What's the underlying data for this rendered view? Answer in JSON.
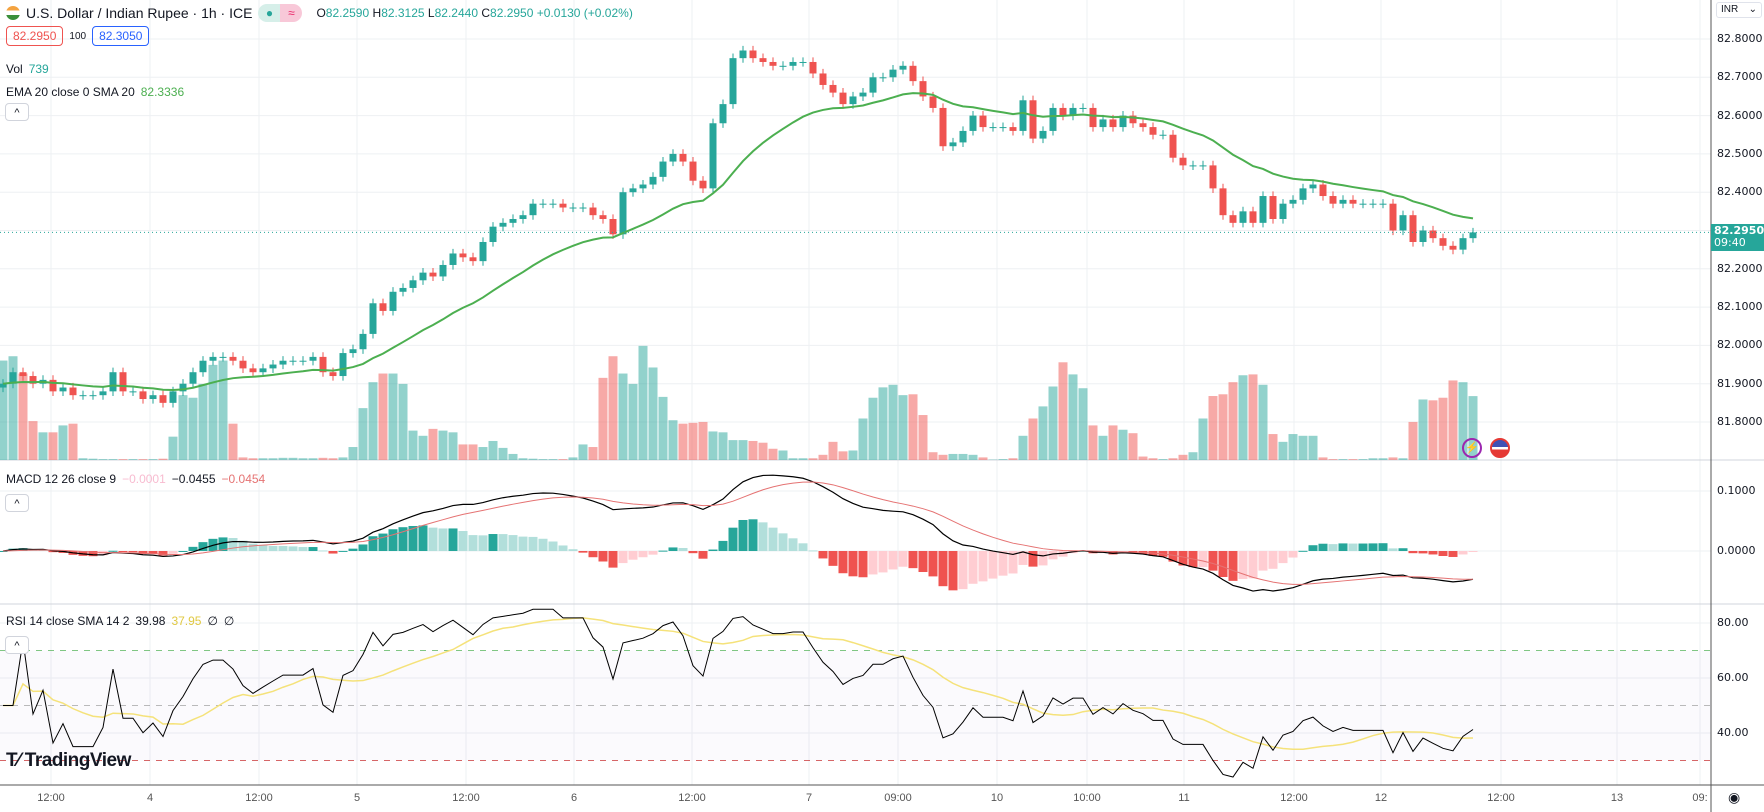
{
  "header": {
    "symbol": "U.S. Dollar / Indian Rupee · 1h · ICE",
    "open_label": "O",
    "open": "82.2590",
    "high_label": "H",
    "high": "82.3125",
    "low_label": "L",
    "low": "82.2440",
    "close_label": "C",
    "close": "82.2950",
    "change": "+0.0130 (+0.02%)",
    "market_open_glyph": "●",
    "delay_glyph": "≈"
  },
  "quote": {
    "bid": "82.2950",
    "spread": "100",
    "ask": "82.3050"
  },
  "volume": {
    "label": "Vol",
    "value": "739"
  },
  "ema": {
    "label": "EMA 20 close 0 SMA 20",
    "value": "82.3336"
  },
  "macd": {
    "label": "MACD 12 26 close 9",
    "hist": "−0.0001",
    "macd": "−0.0455",
    "signal": "−0.0454"
  },
  "rsi": {
    "label": "RSI 14 close SMA 14 2",
    "rsi": "39.98",
    "sma": "37.95",
    "extra1": "∅",
    "extra2": "∅"
  },
  "price_axis": {
    "currency": "INR",
    "ticks": [
      "82.8000",
      "82.7000",
      "82.6000",
      "82.5000",
      "82.4000",
      "82.2000",
      "82.1000",
      "82.0000",
      "81.9000",
      "81.8000"
    ],
    "current_price": "82.2950",
    "countdown": "09:40"
  },
  "macd_axis": {
    "ticks": [
      "0.1000",
      "0.0000"
    ]
  },
  "rsi_axis": {
    "ticks": [
      "80.00",
      "60.00",
      "40.00"
    ]
  },
  "time_axis": {
    "labels": [
      "12:00",
      "4",
      "12:00",
      "5",
      "12:00",
      "6",
      "12:00",
      "7",
      "09:00",
      "10",
      "10:00",
      "11",
      "12:00",
      "12",
      "12:00",
      "13",
      "09:"
    ]
  },
  "logo": "TradingView",
  "icons": [
    "collapse-icon",
    "lightning-event-icon",
    "us-flag-event-icon",
    "eye-icon"
  ],
  "colors": {
    "up": "#26a69a",
    "down": "#ef5350",
    "ema": "#4caf50",
    "macd": "#000000",
    "signal": "#e57373",
    "rsi": "#000000",
    "rsi_sma": "#f5e27a"
  },
  "chart_data": {
    "type": "candlestick",
    "title": "U.S. Dollar / Indian Rupee · 1h · ICE",
    "ylim": [
      81.72,
      82.89
    ],
    "close": [
      81.9,
      81.93,
      81.92,
      81.9,
      81.91,
      81.88,
      81.89,
      81.87,
      81.87,
      81.87,
      81.88,
      81.93,
      81.88,
      81.88,
      81.86,
      81.87,
      81.85,
      81.88,
      81.9,
      81.93,
      81.96,
      81.97,
      81.97,
      81.96,
      81.94,
      81.93,
      81.94,
      81.95,
      81.96,
      81.96,
      81.96,
      81.97,
      81.93,
      81.92,
      81.98,
      81.99,
      82.03,
      82.11,
      82.09,
      82.14,
      82.15,
      82.17,
      82.19,
      82.18,
      82.21,
      82.24,
      82.23,
      82.22,
      82.27,
      82.31,
      82.32,
      82.33,
      82.34,
      82.37,
      82.37,
      82.37,
      82.36,
      82.36,
      82.36,
      82.34,
      82.33,
      82.29,
      82.4,
      82.41,
      82.42,
      82.44,
      82.48,
      82.5,
      82.48,
      82.43,
      82.41,
      82.58,
      82.63,
      82.75,
      82.77,
      82.75,
      82.74,
      82.73,
      82.73,
      82.74,
      82.74,
      82.71,
      82.68,
      82.66,
      82.63,
      82.65,
      82.66,
      82.7,
      82.7,
      82.72,
      82.73,
      82.69,
      82.65,
      82.62,
      82.52,
      82.53,
      82.56,
      82.6,
      82.57,
      82.57,
      82.57,
      82.56,
      82.64,
      82.54,
      82.56,
      82.62,
      82.6,
      82.62,
      82.62,
      82.57,
      82.59,
      82.57,
      82.6,
      82.58,
      82.57,
      82.55,
      82.55,
      82.49,
      82.47,
      82.47,
      82.47,
      82.41,
      82.34,
      82.32,
      82.35,
      82.32,
      82.39,
      82.33,
      82.37,
      82.38,
      82.41,
      82.42,
      82.39,
      82.37,
      82.38,
      82.37,
      82.37,
      82.37,
      82.37,
      82.3,
      82.34,
      82.27,
      82.3,
      82.28,
      82.26,
      82.25,
      82.28,
      82.295
    ],
    "volume": [
      1150,
      1200,
      1000,
      450,
      320,
      320,
      400,
      420,
      20,
      15,
      10,
      10,
      10,
      10,
      10,
      10,
      15,
      270,
      750,
      720,
      880,
      1100,
      1150,
      420,
      30,
      20,
      20,
      20,
      25,
      25,
      20,
      20,
      25,
      20,
      30,
      150,
      600,
      900,
      1000,
      1000,
      880,
      340,
      280,
      360,
      340,
      320,
      180,
      180,
      150,
      220,
      140,
      70,
      20,
      15,
      10,
      10,
      10,
      30,
      180,
      150,
      950,
      1200,
      1000,
      880,
      1320,
      1070,
      730,
      460,
      420,
      430,
      440,
      330,
      320,
      230,
      230,
      220,
      200,
      130,
      110,
      20,
      20,
      20,
      60,
      210,
      100,
      110,
      480,
      720,
      840,
      870,
      750,
      760,
      520,
      90,
      60,
      70,
      70,
      60,
      30,
      5,
      10,
      20,
      280,
      480,
      620,
      850,
      1130,
      990,
      830,
      400,
      280,
      400,
      350,
      310,
      40,
      20,
      10,
      20,
      60,
      90,
      480,
      740,
      760,
      900,
      980,
      990,
      870,
      300,
      210,
      300,
      280,
      280,
      30,
      10,
      10,
      10,
      10,
      20,
      20,
      30,
      20,
      440,
      700,
      690,
      720,
      920,
      900,
      739
    ],
    "indicators": [
      "EMA 20",
      "MACD 12 26 9",
      "RSI 14 + SMA 14"
    ],
    "rsi_levels": [
      70,
      50,
      30
    ],
    "macd_ylim": [
      -0.085,
      0.155
    ],
    "rsi_ylim": [
      22,
      87
    ]
  }
}
